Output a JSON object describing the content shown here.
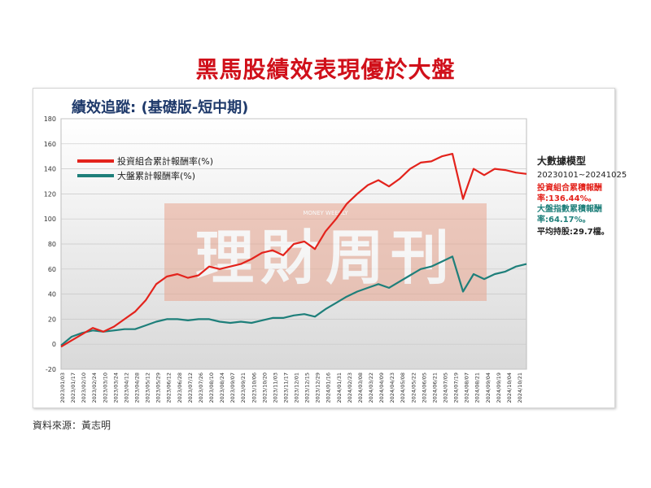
{
  "headline": "黑馬股績效表現優於大盤",
  "source": "資料來源：黃志明",
  "watermark": {
    "main": "理財周刊",
    "sub": "MONEY WEEKLY"
  },
  "side_box": {
    "model": "大數據模型",
    "range": "20230101~20241025",
    "portfolio_return": "投資組合累積報酬率:136.44%。",
    "index_return": "大盤指數累積報酬率:64.17%。",
    "avg_holding": "平均持股:29.7檔。"
  },
  "colors": {
    "portfolio": "#e3231c",
    "index": "#1e7f7a",
    "plot_bg_top": "#ffffff",
    "plot_bg_bottom": "#d9d9d9",
    "headline": "#d0101a"
  },
  "chart_data": {
    "type": "line",
    "title": "績效追蹤: (基礎版-短中期)",
    "xlabel": "",
    "ylabel": "",
    "ylim": [
      -20,
      180
    ],
    "yticks": [
      -20,
      0,
      20,
      40,
      60,
      80,
      100,
      120,
      140,
      160,
      180
    ],
    "grid": true,
    "legend": "top-left",
    "x_tick_labels": [
      "2023/01/03",
      "2023/01/17",
      "2023/02/10",
      "2023/02/24",
      "2023/03/10",
      "2023/03/24",
      "2023/04/12",
      "2023/04/28",
      "2023/05/12",
      "2023/05/29",
      "2023/06/12",
      "2023/06/28",
      "2023/07/12",
      "2023/07/26",
      "2023/08/10",
      "2023/08/24",
      "2023/09/07",
      "2023/09/21",
      "2023/10/06",
      "2023/10/20",
      "2023/11/03",
      "2023/11/17",
      "2023/12/01",
      "2023/12/15",
      "2023/12/29",
      "2024/01/16",
      "2024/01/31",
      "2024/02/23",
      "2024/03/08",
      "2024/03/22",
      "2024/04/09",
      "2024/04/23",
      "2024/05/08",
      "2024/05/22",
      "2024/06/05",
      "2024/06/21",
      "2024/07/05",
      "2024/07/19",
      "2024/08/07",
      "2024/08/21",
      "2024/09/04",
      "2024/09/19",
      "2024/10/04",
      "2024/10/21"
    ],
    "x": [
      "2023/01/03",
      "2023/01/17",
      "2023/02/10",
      "2023/02/24",
      "2023/03/10",
      "2023/03/24",
      "2023/04/12",
      "2023/04/28",
      "2023/05/12",
      "2023/05/29",
      "2023/06/12",
      "2023/06/28",
      "2023/07/12",
      "2023/07/26",
      "2023/08/10",
      "2023/08/24",
      "2023/09/07",
      "2023/09/21",
      "2023/10/06",
      "2023/10/20",
      "2023/11/03",
      "2023/11/17",
      "2023/12/01",
      "2023/12/15",
      "2023/12/29",
      "2024/01/16",
      "2024/01/31",
      "2024/02/23",
      "2024/03/08",
      "2024/03/22",
      "2024/04/09",
      "2024/04/23",
      "2024/05/08",
      "2024/05/22",
      "2024/06/05",
      "2024/06/21",
      "2024/07/05",
      "2024/07/19",
      "2024/08/07",
      "2024/08/21",
      "2024/09/04",
      "2024/09/19",
      "2024/10/04",
      "2024/10/21",
      "2024/10/25"
    ],
    "series": [
      {
        "name": "投資組合累計報酬率(%)",
        "values": [
          -2,
          3,
          8,
          13,
          10,
          14,
          20,
          26,
          35,
          48,
          54,
          56,
          53,
          55,
          62,
          60,
          62,
          64,
          68,
          73,
          75,
          71,
          80,
          82,
          76,
          90,
          100,
          112,
          120,
          127,
          131,
          126,
          132,
          140,
          145,
          146,
          150,
          152,
          116,
          140,
          135,
          140,
          139,
          137,
          136
        ]
      },
      {
        "name": "大盤累計報酬率(%)",
        "values": [
          -1,
          6,
          9,
          11,
          10,
          11,
          12,
          12,
          15,
          18,
          20,
          20,
          19,
          20,
          20,
          18,
          17,
          18,
          17,
          19,
          21,
          21,
          23,
          24,
          22,
          28,
          33,
          38,
          42,
          45,
          48,
          45,
          50,
          55,
          60,
          62,
          66,
          70,
          42,
          56,
          52,
          56,
          58,
          62,
          64
        ]
      }
    ]
  }
}
